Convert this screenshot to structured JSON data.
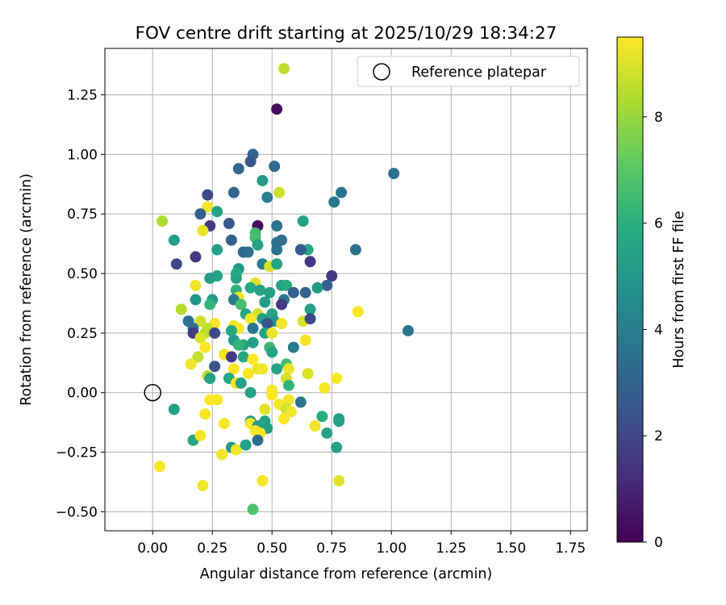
{
  "chart_data": {
    "type": "scatter",
    "title": "FOV centre drift starting at 2025/10/29 18:34:27",
    "xlabel": "Angular distance from reference (arcmin)",
    "ylabel": "Rotation from reference (arcmin)",
    "xlim": [
      -0.2,
      1.82
    ],
    "ylim": [
      -0.58,
      1.445
    ],
    "x_ticks": [
      0.0,
      0.25,
      0.5,
      0.75,
      1.0,
      1.25,
      1.5,
      1.75
    ],
    "x_tick_labels": [
      "0.00",
      "0.25",
      "0.50",
      "0.75",
      "1.00",
      "1.25",
      "1.50",
      "1.75"
    ],
    "y_ticks": [
      -0.5,
      -0.25,
      0.0,
      0.25,
      0.5,
      0.75,
      1.0,
      1.25
    ],
    "y_tick_labels": [
      "−0.50",
      "−0.25",
      "0.00",
      "0.25",
      "0.50",
      "0.75",
      "1.00",
      "1.25"
    ],
    "grid": true,
    "legend": {
      "position": "top-right",
      "label": "Reference platepar"
    },
    "reference_point": {
      "x": 0.0,
      "y": 0.0
    },
    "colorbar": {
      "label": "Hours from first FF file",
      "min": 0,
      "max": 9.5,
      "ticks": [
        0,
        2,
        4,
        6,
        8
      ],
      "tick_labels": [
        "0",
        "2",
        "4",
        "6",
        "8"
      ],
      "colormap": "viridis"
    },
    "points": [
      {
        "x": 0.55,
        "y": 1.36,
        "h": 8.6
      },
      {
        "x": 0.52,
        "y": 1.19,
        "h": 0.3
      },
      {
        "x": 1.01,
        "y": 0.92,
        "h": 3.6
      },
      {
        "x": 0.42,
        "y": 1.0,
        "h": 3.1
      },
      {
        "x": 0.41,
        "y": 0.97,
        "h": 2.6
      },
      {
        "x": 0.36,
        "y": 0.94,
        "h": 3.1
      },
      {
        "x": 0.51,
        "y": 0.95,
        "h": 3.2
      },
      {
        "x": 0.46,
        "y": 0.89,
        "h": 5.1
      },
      {
        "x": 0.53,
        "y": 0.84,
        "h": 8.8
      },
      {
        "x": 0.79,
        "y": 0.84,
        "h": 3.6
      },
      {
        "x": 0.23,
        "y": 0.83,
        "h": 2.1
      },
      {
        "x": 0.34,
        "y": 0.84,
        "h": 3.1
      },
      {
        "x": 0.48,
        "y": 0.82,
        "h": 3.9
      },
      {
        "x": 0.76,
        "y": 0.8,
        "h": 3.8
      },
      {
        "x": 0.23,
        "y": 0.78,
        "h": 9.3
      },
      {
        "x": 0.27,
        "y": 0.76,
        "h": 5.4
      },
      {
        "x": 0.2,
        "y": 0.75,
        "h": 2.9
      },
      {
        "x": 0.04,
        "y": 0.72,
        "h": 8.3
      },
      {
        "x": 0.63,
        "y": 0.72,
        "h": 5.4
      },
      {
        "x": 0.32,
        "y": 0.71,
        "h": 2.6
      },
      {
        "x": 0.44,
        "y": 0.7,
        "h": 0.3
      },
      {
        "x": 0.52,
        "y": 0.7,
        "h": 3.6
      },
      {
        "x": 0.24,
        "y": 0.7,
        "h": 1.6
      },
      {
        "x": 0.21,
        "y": 0.68,
        "h": 9.2
      },
      {
        "x": 0.43,
        "y": 0.67,
        "h": 6.4
      },
      {
        "x": 0.43,
        "y": 0.65,
        "h": 6.6
      },
      {
        "x": 0.33,
        "y": 0.64,
        "h": 2.9
      },
      {
        "x": 0.52,
        "y": 0.63,
        "h": 3.4
      },
      {
        "x": 0.54,
        "y": 0.64,
        "h": 3.5
      },
      {
        "x": 0.09,
        "y": 0.64,
        "h": 5.3
      },
      {
        "x": 0.44,
        "y": 0.62,
        "h": 5.4
      },
      {
        "x": 0.65,
        "y": 0.6,
        "h": 5.7
      },
      {
        "x": 0.52,
        "y": 0.6,
        "h": 3.5
      },
      {
        "x": 0.27,
        "y": 0.6,
        "h": 5.4
      },
      {
        "x": 0.38,
        "y": 0.59,
        "h": 3.2
      },
      {
        "x": 0.4,
        "y": 0.59,
        "h": 3.4
      },
      {
        "x": 0.62,
        "y": 0.6,
        "h": 2.8
      },
      {
        "x": 0.85,
        "y": 0.6,
        "h": 3.5
      },
      {
        "x": 0.18,
        "y": 0.57,
        "h": 1.6
      },
      {
        "x": 0.66,
        "y": 0.55,
        "h": 1.6
      },
      {
        "x": 0.1,
        "y": 0.54,
        "h": 2.1
      },
      {
        "x": 0.46,
        "y": 0.54,
        "h": 4.1
      },
      {
        "x": 0.49,
        "y": 0.53,
        "h": 8.9
      },
      {
        "x": 0.52,
        "y": 0.54,
        "h": 5.5
      },
      {
        "x": 0.36,
        "y": 0.52,
        "h": 5.1
      },
      {
        "x": 0.35,
        "y": 0.5,
        "h": 5.8
      },
      {
        "x": 0.27,
        "y": 0.49,
        "h": 5.5
      },
      {
        "x": 0.24,
        "y": 0.48,
        "h": 5.3
      },
      {
        "x": 0.35,
        "y": 0.48,
        "h": 5.4
      },
      {
        "x": 0.75,
        "y": 0.49,
        "h": 1.6
      },
      {
        "x": 0.18,
        "y": 0.45,
        "h": 9.3
      },
      {
        "x": 0.43,
        "y": 0.46,
        "h": 9.1
      },
      {
        "x": 0.54,
        "y": 0.45,
        "h": 5.3
      },
      {
        "x": 0.56,
        "y": 0.45,
        "h": 5.8
      },
      {
        "x": 0.73,
        "y": 0.45,
        "h": 3.0
      },
      {
        "x": 0.35,
        "y": 0.43,
        "h": 6.1
      },
      {
        "x": 0.41,
        "y": 0.44,
        "h": 5.6
      },
      {
        "x": 0.45,
        "y": 0.43,
        "h": 5.5
      },
      {
        "x": 0.49,
        "y": 0.42,
        "h": 5.3
      },
      {
        "x": 0.59,
        "y": 0.42,
        "h": 2.9
      },
      {
        "x": 0.64,
        "y": 0.42,
        "h": 3.1
      },
      {
        "x": 0.69,
        "y": 0.44,
        "h": 5.1
      },
      {
        "x": 0.36,
        "y": 0.4,
        "h": 9.3
      },
      {
        "x": 0.18,
        "y": 0.39,
        "h": 4.9
      },
      {
        "x": 0.25,
        "y": 0.39,
        "h": 5.1
      },
      {
        "x": 0.34,
        "y": 0.39,
        "h": 3.9
      },
      {
        "x": 0.55,
        "y": 0.39,
        "h": 3.7
      },
      {
        "x": 0.47,
        "y": 0.38,
        "h": 5.2
      },
      {
        "x": 0.24,
        "y": 0.37,
        "h": 6.2
      },
      {
        "x": 0.37,
        "y": 0.37,
        "h": 6.6
      },
      {
        "x": 0.54,
        "y": 0.37,
        "h": 1.6
      },
      {
        "x": 0.66,
        "y": 0.35,
        "h": 5.4
      },
      {
        "x": 0.12,
        "y": 0.35,
        "h": 8.4
      },
      {
        "x": 0.39,
        "y": 0.33,
        "h": 5.6
      },
      {
        "x": 0.44,
        "y": 0.33,
        "h": 8.8
      },
      {
        "x": 0.86,
        "y": 0.34,
        "h": 9.4
      },
      {
        "x": 0.5,
        "y": 0.33,
        "h": 5.5
      },
      {
        "x": 0.46,
        "y": 0.31,
        "h": 5.3
      },
      {
        "x": 0.41,
        "y": 0.31,
        "h": 9.5
      },
      {
        "x": 0.15,
        "y": 0.3,
        "h": 3.4
      },
      {
        "x": 0.2,
        "y": 0.3,
        "h": 8.8
      },
      {
        "x": 0.51,
        "y": 0.3,
        "h": 4.9
      },
      {
        "x": 0.54,
        "y": 0.29,
        "h": 9.3
      },
      {
        "x": 0.63,
        "y": 0.3,
        "h": 9.0
      },
      {
        "x": 0.66,
        "y": 0.31,
        "h": 2.1
      },
      {
        "x": 0.48,
        "y": 0.29,
        "h": 2.5
      },
      {
        "x": 0.26,
        "y": 0.29,
        "h": 9.4
      },
      {
        "x": 0.17,
        "y": 0.27,
        "h": 3.5
      },
      {
        "x": 0.23,
        "y": 0.27,
        "h": 8.6
      },
      {
        "x": 0.34,
        "y": 0.28,
        "h": 9.3
      },
      {
        "x": 0.36,
        "y": 0.27,
        "h": 9.4
      },
      {
        "x": 0.33,
        "y": 0.26,
        "h": 5.6
      },
      {
        "x": 0.42,
        "y": 0.27,
        "h": 3.7
      },
      {
        "x": 0.47,
        "y": 0.25,
        "h": 5.4
      },
      {
        "x": 0.5,
        "y": 0.25,
        "h": 9.2
      },
      {
        "x": 1.07,
        "y": 0.26,
        "h": 3.7
      },
      {
        "x": 0.17,
        "y": 0.25,
        "h": 1.6
      },
      {
        "x": 0.22,
        "y": 0.25,
        "h": 8.5
      },
      {
        "x": 0.26,
        "y": 0.25,
        "h": 2.1
      },
      {
        "x": 0.2,
        "y": 0.23,
        "h": 9.0
      },
      {
        "x": 0.34,
        "y": 0.22,
        "h": 5.1
      },
      {
        "x": 0.38,
        "y": 0.2,
        "h": 5.6
      },
      {
        "x": 0.42,
        "y": 0.21,
        "h": 5.3
      },
      {
        "x": 0.36,
        "y": 0.2,
        "h": 6.2
      },
      {
        "x": 0.49,
        "y": 0.19,
        "h": 6.4
      },
      {
        "x": 0.64,
        "y": 0.22,
        "h": 9.3
      },
      {
        "x": 0.59,
        "y": 0.19,
        "h": 3.9
      },
      {
        "x": 0.22,
        "y": 0.19,
        "h": 9.4
      },
      {
        "x": 0.5,
        "y": 0.17,
        "h": 5.5
      },
      {
        "x": 0.3,
        "y": 0.16,
        "h": 9.3
      },
      {
        "x": 0.19,
        "y": 0.15,
        "h": 8.6
      },
      {
        "x": 0.38,
        "y": 0.15,
        "h": 5.6
      },
      {
        "x": 0.33,
        "y": 0.15,
        "h": 1.6
      },
      {
        "x": 0.42,
        "y": 0.14,
        "h": 9.5
      },
      {
        "x": 0.16,
        "y": 0.12,
        "h": 9.3
      },
      {
        "x": 0.56,
        "y": 0.12,
        "h": 6.6
      },
      {
        "x": 0.26,
        "y": 0.11,
        "h": 2.5
      },
      {
        "x": 0.44,
        "y": 0.1,
        "h": 9.2
      },
      {
        "x": 0.46,
        "y": 0.1,
        "h": 9.3
      },
      {
        "x": 0.52,
        "y": 0.1,
        "h": 5.5
      },
      {
        "x": 0.34,
        "y": 0.1,
        "h": 9.5
      },
      {
        "x": 0.57,
        "y": 0.1,
        "h": 9.2
      },
      {
        "x": 0.4,
        "y": 0.08,
        "h": 9.4
      },
      {
        "x": 0.65,
        "y": 0.08,
        "h": 9.0
      },
      {
        "x": 0.23,
        "y": 0.07,
        "h": 8.6
      },
      {
        "x": 0.32,
        "y": 0.06,
        "h": 5.6
      },
      {
        "x": 0.24,
        "y": 0.06,
        "h": 5.4
      },
      {
        "x": 0.56,
        "y": 0.06,
        "h": 8.9
      },
      {
        "x": 0.77,
        "y": 0.06,
        "h": 9.4
      },
      {
        "x": 0.35,
        "y": 0.04,
        "h": 9.3
      },
      {
        "x": 0.37,
        "y": 0.04,
        "h": 5.4
      },
      {
        "x": 0.57,
        "y": 0.03,
        "h": 6.2
      },
      {
        "x": 0.72,
        "y": 0.02,
        "h": 9.4
      },
      {
        "x": 0.41,
        "y": 0.0,
        "h": 5.4
      },
      {
        "x": 0.5,
        "y": 0.01,
        "h": 9.4
      },
      {
        "x": 0.5,
        "y": -0.01,
        "h": 9.5
      },
      {
        "x": 0.24,
        "y": -0.03,
        "h": 9.5
      },
      {
        "x": 0.27,
        "y": -0.03,
        "h": 9.4
      },
      {
        "x": 0.57,
        "y": -0.03,
        "h": 9.3
      },
      {
        "x": 0.62,
        "y": -0.04,
        "h": 3.7
      },
      {
        "x": 0.53,
        "y": -0.05,
        "h": 9.4
      },
      {
        "x": 0.56,
        "y": -0.07,
        "h": 8.8
      },
      {
        "x": 0.47,
        "y": -0.07,
        "h": 9.0
      },
      {
        "x": 0.09,
        "y": -0.07,
        "h": 5.4
      },
      {
        "x": 0.22,
        "y": -0.09,
        "h": 9.4
      },
      {
        "x": 0.58,
        "y": -0.08,
        "h": 9.3
      },
      {
        "x": 0.71,
        "y": -0.1,
        "h": 5.9
      },
      {
        "x": 0.55,
        "y": -0.11,
        "h": 9.4
      },
      {
        "x": 0.78,
        "y": -0.11,
        "h": 5.4
      },
      {
        "x": 0.78,
        "y": -0.12,
        "h": 5.4
      },
      {
        "x": 0.41,
        "y": -0.12,
        "h": 5.1
      },
      {
        "x": 0.47,
        "y": -0.12,
        "h": 5.4
      },
      {
        "x": 0.3,
        "y": -0.13,
        "h": 9.4
      },
      {
        "x": 0.41,
        "y": -0.13,
        "h": 9.5
      },
      {
        "x": 0.44,
        "y": -0.14,
        "h": 5.1
      },
      {
        "x": 0.46,
        "y": -0.14,
        "h": 5.4
      },
      {
        "x": 0.68,
        "y": -0.14,
        "h": 9.3
      },
      {
        "x": 0.48,
        "y": -0.15,
        "h": 5.3
      },
      {
        "x": 0.43,
        "y": -0.16,
        "h": 9.4
      },
      {
        "x": 0.73,
        "y": -0.17,
        "h": 5.5
      },
      {
        "x": 0.45,
        "y": -0.17,
        "h": 9.5
      },
      {
        "x": 0.17,
        "y": -0.2,
        "h": 5.6
      },
      {
        "x": 0.2,
        "y": -0.18,
        "h": 9.4
      },
      {
        "x": 0.44,
        "y": -0.2,
        "h": 3.3
      },
      {
        "x": 0.33,
        "y": -0.23,
        "h": 5.1
      },
      {
        "x": 0.35,
        "y": -0.24,
        "h": 9.3
      },
      {
        "x": 0.39,
        "y": -0.22,
        "h": 5.4
      },
      {
        "x": 0.77,
        "y": -0.23,
        "h": 5.4
      },
      {
        "x": 0.29,
        "y": -0.26,
        "h": 9.3
      },
      {
        "x": 0.03,
        "y": -0.31,
        "h": 9.4
      },
      {
        "x": 0.46,
        "y": -0.37,
        "h": 9.4
      },
      {
        "x": 0.78,
        "y": -0.37,
        "h": 9.1
      },
      {
        "x": 0.21,
        "y": -0.39,
        "h": 9.3
      },
      {
        "x": 0.42,
        "y": -0.49,
        "h": 6.8
      }
    ]
  }
}
